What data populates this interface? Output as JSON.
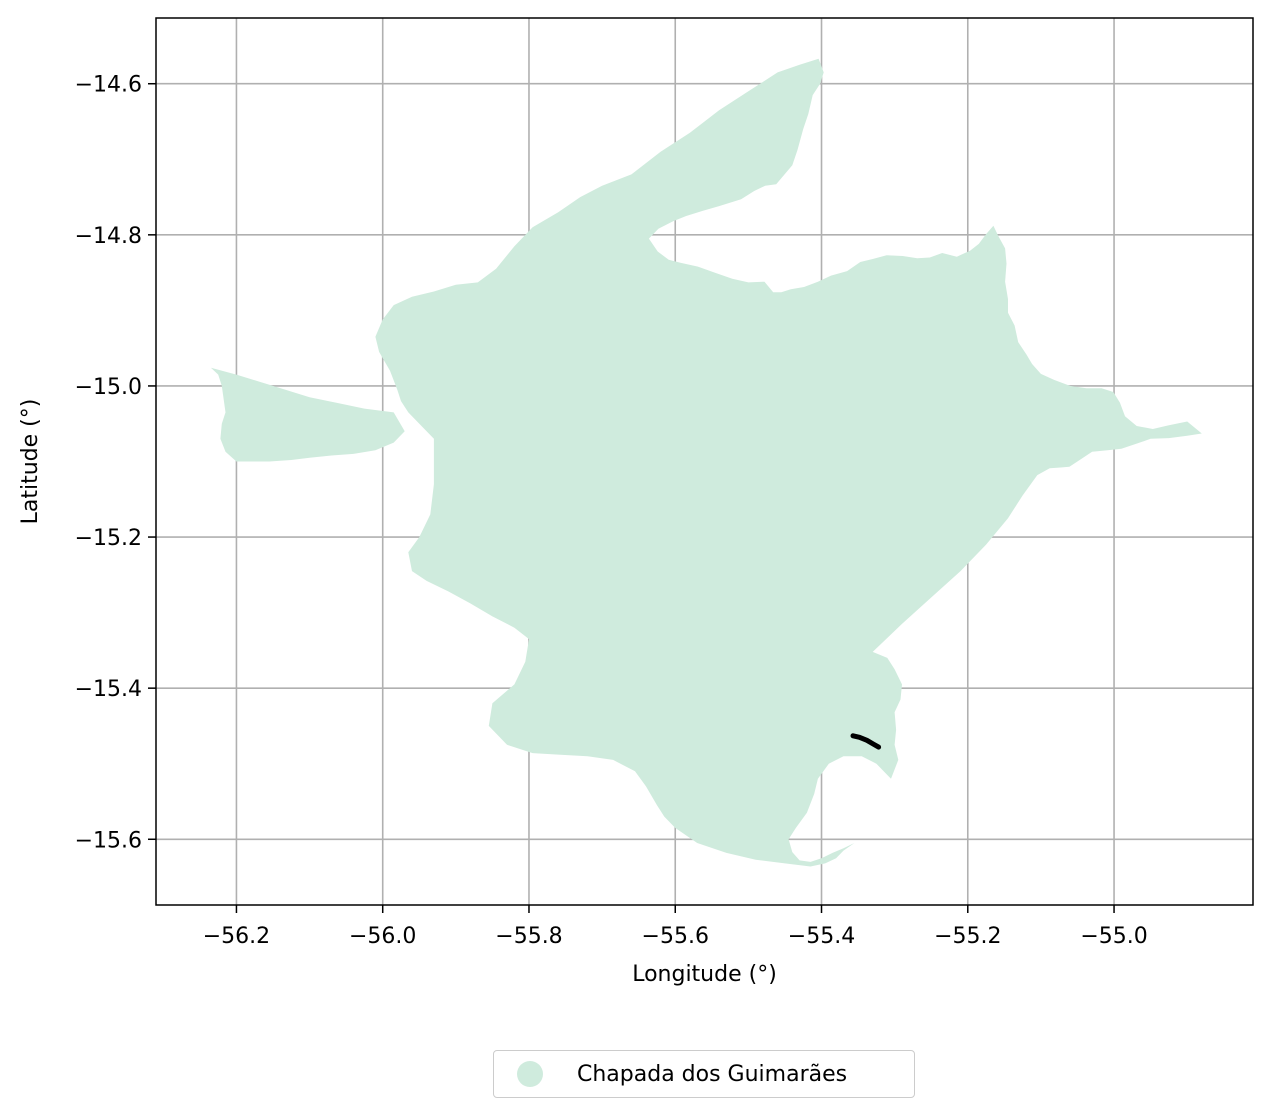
{
  "chart_data": {
    "type": "map",
    "xlabel": "Longitude (°)",
    "ylabel": "Latitude (°)",
    "xlim": [
      -56.31,
      -54.81
    ],
    "ylim": [
      -15.687,
      -14.513
    ],
    "xticks": [
      -56.2,
      -56.0,
      -55.8,
      -55.6,
      -55.4,
      -55.2,
      -55.0
    ],
    "yticks": [
      -14.6,
      -14.8,
      -15.0,
      -15.2,
      -15.4,
      -15.6
    ],
    "xtick_labels": [
      "−56.2",
      "−56.0",
      "−55.8",
      "−55.6",
      "−55.4",
      "−55.2",
      "−55.0"
    ],
    "ytick_labels": [
      "−14.6",
      "−14.8",
      "−15.0",
      "−15.2",
      "−15.4",
      "−15.6"
    ],
    "grid": true,
    "legend_position": "bottom-center",
    "region": {
      "name": "Chapada dos Guimarães",
      "color": "#cfebdd",
      "boundary": [
        [
          -55.404,
          -14.567
        ],
        [
          -55.397,
          -14.585
        ],
        [
          -55.402,
          -14.6
        ],
        [
          -55.412,
          -14.615
        ],
        [
          -55.418,
          -14.64
        ],
        [
          -55.425,
          -14.66
        ],
        [
          -55.433,
          -14.688
        ],
        [
          -55.44,
          -14.708
        ],
        [
          -55.462,
          -14.733
        ],
        [
          -55.477,
          -14.735
        ],
        [
          -55.492,
          -14.742
        ],
        [
          -55.51,
          -14.753
        ],
        [
          -55.54,
          -14.762
        ],
        [
          -55.562,
          -14.768
        ],
        [
          -55.585,
          -14.775
        ],
        [
          -55.603,
          -14.782
        ],
        [
          -55.623,
          -14.792
        ],
        [
          -55.636,
          -14.805
        ],
        [
          -55.624,
          -14.822
        ],
        [
          -55.609,
          -14.833
        ],
        [
          -55.593,
          -14.837
        ],
        [
          -55.569,
          -14.842
        ],
        [
          -55.546,
          -14.85
        ],
        [
          -55.522,
          -14.858
        ],
        [
          -55.5,
          -14.863
        ],
        [
          -55.478,
          -14.862
        ],
        [
          -55.466,
          -14.876
        ],
        [
          -55.455,
          -14.876
        ],
        [
          -55.442,
          -14.872
        ],
        [
          -55.424,
          -14.869
        ],
        [
          -55.405,
          -14.862
        ],
        [
          -55.387,
          -14.854
        ],
        [
          -55.365,
          -14.848
        ],
        [
          -55.347,
          -14.836
        ],
        [
          -55.33,
          -14.832
        ],
        [
          -55.311,
          -14.827
        ],
        [
          -55.289,
          -14.828
        ],
        [
          -55.269,
          -14.831
        ],
        [
          -55.252,
          -14.83
        ],
        [
          -55.235,
          -14.824
        ],
        [
          -55.215,
          -14.829
        ],
        [
          -55.197,
          -14.821
        ],
        [
          -55.185,
          -14.812
        ],
        [
          -55.175,
          -14.799
        ],
        [
          -55.165,
          -14.788
        ],
        [
          -55.158,
          -14.802
        ],
        [
          -55.149,
          -14.818
        ],
        [
          -55.147,
          -14.838
        ],
        [
          -55.149,
          -14.862
        ],
        [
          -55.145,
          -14.885
        ],
        [
          -55.145,
          -14.903
        ],
        [
          -55.136,
          -14.92
        ],
        [
          -55.131,
          -14.942
        ],
        [
          -55.12,
          -14.958
        ],
        [
          -55.112,
          -14.971
        ],
        [
          -55.1,
          -14.984
        ],
        [
          -55.082,
          -14.992
        ],
        [
          -55.06,
          -15.0
        ],
        [
          -55.038,
          -15.003
        ],
        [
          -55.017,
          -15.003
        ],
        [
          -55.001,
          -15.008
        ],
        [
          -54.992,
          -15.022
        ],
        [
          -54.985,
          -15.04
        ],
        [
          -54.969,
          -15.053
        ],
        [
          -54.947,
          -15.057
        ],
        [
          -54.925,
          -15.052
        ],
        [
          -54.9,
          -15.047
        ],
        [
          -54.88,
          -15.063
        ],
        [
          -54.9,
          -15.066
        ],
        [
          -54.925,
          -15.069
        ],
        [
          -54.95,
          -15.07
        ],
        [
          -54.968,
          -15.076
        ],
        [
          -54.99,
          -15.083
        ],
        [
          -55.009,
          -15.085
        ],
        [
          -55.03,
          -15.087
        ],
        [
          -55.047,
          -15.098
        ],
        [
          -55.061,
          -15.107
        ],
        [
          -55.073,
          -15.108
        ],
        [
          -55.088,
          -15.109
        ],
        [
          -55.105,
          -15.118
        ],
        [
          -55.125,
          -15.145
        ],
        [
          -55.145,
          -15.175
        ],
        [
          -55.175,
          -15.21
        ],
        [
          -55.21,
          -15.245
        ],
        [
          -55.25,
          -15.28
        ],
        [
          -55.29,
          -15.315
        ],
        [
          -55.33,
          -15.352
        ],
        [
          -55.31,
          -15.36
        ],
        [
          -55.3,
          -15.375
        ],
        [
          -55.29,
          -15.395
        ],
        [
          -55.292,
          -15.415
        ],
        [
          -55.3,
          -15.432
        ],
        [
          -55.298,
          -15.455
        ],
        [
          -55.3,
          -15.475
        ],
        [
          -55.295,
          -15.495
        ],
        [
          -55.305,
          -15.52
        ],
        [
          -55.325,
          -15.5
        ],
        [
          -55.345,
          -15.49
        ],
        [
          -55.37,
          -15.49
        ],
        [
          -55.39,
          -15.5
        ],
        [
          -55.405,
          -15.52
        ],
        [
          -55.41,
          -15.54
        ],
        [
          -55.42,
          -15.565
        ],
        [
          -55.435,
          -15.585
        ],
        [
          -55.445,
          -15.6
        ],
        [
          -55.44,
          -15.617
        ],
        [
          -55.43,
          -15.628
        ],
        [
          -55.415,
          -15.63
        ],
        [
          -55.4,
          -15.625
        ],
        [
          -55.385,
          -15.618
        ],
        [
          -55.37,
          -15.612
        ],
        [
          -55.355,
          -15.605
        ],
        [
          -55.37,
          -15.615
        ],
        [
          -55.38,
          -15.625
        ],
        [
          -55.395,
          -15.632
        ],
        [
          -55.415,
          -15.636
        ],
        [
          -55.45,
          -15.632
        ],
        [
          -55.49,
          -15.627
        ],
        [
          -55.53,
          -15.618
        ],
        [
          -55.57,
          -15.605
        ],
        [
          -55.6,
          -15.585
        ],
        [
          -55.615,
          -15.57
        ],
        [
          -55.625,
          -15.555
        ],
        [
          -55.64,
          -15.53
        ],
        [
          -55.655,
          -15.51
        ],
        [
          -55.685,
          -15.495
        ],
        [
          -55.72,
          -15.49
        ],
        [
          -55.76,
          -15.488
        ],
        [
          -55.795,
          -15.486
        ],
        [
          -55.83,
          -15.475
        ],
        [
          -55.855,
          -15.45
        ],
        [
          -55.85,
          -15.42
        ],
        [
          -55.82,
          -15.395
        ],
        [
          -55.805,
          -15.365
        ],
        [
          -55.8,
          -15.335
        ],
        [
          -55.82,
          -15.32
        ],
        [
          -55.85,
          -15.305
        ],
        [
          -55.88,
          -15.288
        ],
        [
          -55.91,
          -15.272
        ],
        [
          -55.94,
          -15.258
        ],
        [
          -55.96,
          -15.245
        ],
        [
          -55.965,
          -15.22
        ],
        [
          -55.95,
          -15.2
        ],
        [
          -55.935,
          -15.17
        ],
        [
          -55.93,
          -15.13
        ],
        [
          -55.93,
          -15.07
        ],
        [
          -55.95,
          -15.05
        ],
        [
          -55.965,
          -15.035
        ],
        [
          -55.975,
          -15.02
        ],
        [
          -55.98,
          -15.005
        ],
        [
          -55.99,
          -14.98
        ],
        [
          -56.005,
          -14.955
        ],
        [
          -56.01,
          -14.935
        ],
        [
          -56.0,
          -14.912
        ],
        [
          -55.985,
          -14.893
        ],
        [
          -55.96,
          -14.882
        ],
        [
          -55.93,
          -14.875
        ],
        [
          -55.9,
          -14.866
        ],
        [
          -55.87,
          -14.863
        ],
        [
          -55.845,
          -14.845
        ],
        [
          -55.82,
          -14.815
        ],
        [
          -55.795,
          -14.79
        ],
        [
          -55.76,
          -14.77
        ],
        [
          -55.73,
          -14.75
        ],
        [
          -55.7,
          -14.735
        ],
        [
          -55.66,
          -14.72
        ],
        [
          -55.62,
          -14.69
        ],
        [
          -55.58,
          -14.665
        ],
        [
          -55.54,
          -14.635
        ],
        [
          -55.5,
          -14.61
        ],
        [
          -55.46,
          -14.585
        ],
        [
          -55.43,
          -14.575
        ]
      ],
      "western_lobe": [
        [
          -56.235,
          -14.976
        ],
        [
          -56.2,
          -14.985
        ],
        [
          -56.15,
          -15.0
        ],
        [
          -56.1,
          -15.015
        ],
        [
          -56.06,
          -15.023
        ],
        [
          -56.025,
          -15.03
        ],
        [
          -55.985,
          -15.035
        ],
        [
          -55.97,
          -15.06
        ],
        [
          -55.985,
          -15.075
        ],
        [
          -56.01,
          -15.085
        ],
        [
          -56.04,
          -15.09
        ],
        [
          -56.07,
          -15.092
        ],
        [
          -56.1,
          -15.095
        ],
        [
          -56.125,
          -15.098
        ],
        [
          -56.155,
          -15.1
        ],
        [
          -56.18,
          -15.1
        ],
        [
          -56.2,
          -15.1
        ],
        [
          -56.215,
          -15.087
        ],
        [
          -56.222,
          -15.07
        ],
        [
          -56.22,
          -15.05
        ],
        [
          -56.215,
          -15.035
        ],
        [
          -56.22,
          -15.0
        ],
        [
          -56.225,
          -14.985
        ]
      ]
    },
    "highlight": {
      "color": "#000000",
      "line": [
        [
          -55.357,
          -15.463
        ],
        [
          -55.348,
          -15.465
        ],
        [
          -55.338,
          -15.469
        ],
        [
          -55.329,
          -15.474
        ],
        [
          -55.322,
          -15.478
        ]
      ]
    },
    "legend": [
      {
        "label": "Chapada dos Guimarães",
        "color": "#cfebdd"
      }
    ]
  }
}
